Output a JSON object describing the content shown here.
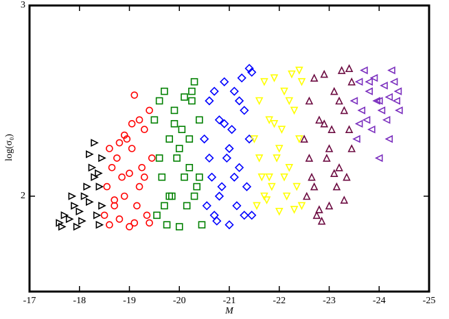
{
  "chart_data": {
    "type": "scatter",
    "x_label": "M",
    "y_label": "log(σ₀)",
    "xlim": [
      -17,
      -25
    ],
    "ylim": [
      1.5,
      3
    ],
    "xticks": [
      -17,
      -18,
      -19,
      -20,
      -21,
      -22,
      -23,
      -24,
      -25
    ],
    "yticks": [
      2,
      3
    ],
    "series": [
      {
        "color": "#000000",
        "marker": "triangle-right",
        "x": [
          -17.6,
          -17.7,
          -17.8,
          -17.9,
          -18.0,
          -18.1,
          -18.2,
          -18.3,
          -18.4,
          -18.45,
          -17.65,
          -17.85,
          -18.05,
          -18.25,
          -18.35,
          -18.4,
          -18.15,
          -17.95,
          -18.3,
          -18.45,
          -18.2,
          -18.38
        ],
        "y": [
          1.86,
          1.9,
          1.88,
          1.95,
          1.92,
          2.0,
          1.97,
          2.1,
          2.05,
          2.2,
          1.84,
          2.0,
          1.87,
          2.15,
          1.9,
          1.85,
          2.05,
          1.84,
          2.28,
          1.95,
          2.22,
          2.12
        ]
      },
      {
        "color": "#ff0000",
        "marker": "circle",
        "x": [
          -18.5,
          -18.55,
          -18.6,
          -18.65,
          -18.7,
          -18.75,
          -18.8,
          -18.85,
          -18.9,
          -18.95,
          -19.0,
          -19.05,
          -19.1,
          -19.15,
          -19.2,
          -19.25,
          -19.3,
          -19.35,
          -19.4,
          -19.45,
          -18.6,
          -18.8,
          -19.0,
          -19.2,
          -19.4,
          -18.7,
          -18.9,
          -19.1,
          -19.3,
          -19.05
        ],
        "y": [
          1.9,
          2.05,
          1.85,
          2.15,
          1.95,
          2.2,
          1.88,
          2.1,
          2.0,
          2.3,
          1.84,
          2.25,
          2.53,
          1.95,
          2.4,
          2.15,
          2.35,
          1.9,
          2.45,
          2.2,
          2.25,
          2.28,
          2.12,
          2.05,
          1.86,
          1.98,
          2.32,
          1.86,
          2.1,
          2.38
        ]
      },
      {
        "color": "#008000",
        "marker": "square",
        "x": [
          -19.5,
          -19.55,
          -19.6,
          -19.65,
          -19.7,
          -19.75,
          -19.8,
          -19.85,
          -19.9,
          -19.95,
          -20.0,
          -20.05,
          -20.1,
          -20.15,
          -20.2,
          -20.25,
          -20.3,
          -20.35,
          -20.4,
          -20.45,
          -19.6,
          -19.8,
          -20.0,
          -20.2,
          -20.4,
          -19.7,
          -19.9,
          -20.1,
          -20.3,
          -20.25
        ],
        "y": [
          2.4,
          1.9,
          2.5,
          2.1,
          2.55,
          1.85,
          2.3,
          2.0,
          2.45,
          2.2,
          1.84,
          2.35,
          2.52,
          1.95,
          2.15,
          2.5,
          2.6,
          2.05,
          2.4,
          1.85,
          2.2,
          2.0,
          2.25,
          2.3,
          2.1,
          1.95,
          2.38,
          2.1,
          2.0,
          2.55
        ]
      },
      {
        "color": "#0000ff",
        "marker": "diamond",
        "x": [
          -20.5,
          -20.55,
          -20.6,
          -20.65,
          -20.7,
          -20.75,
          -20.8,
          -20.85,
          -20.9,
          -20.95,
          -21.0,
          -21.05,
          -21.1,
          -21.15,
          -21.2,
          -21.25,
          -21.3,
          -21.35,
          -21.4,
          -21.45,
          -20.6,
          -20.8,
          -21.0,
          -21.2,
          -21.4,
          -20.7,
          -20.9,
          -21.1,
          -21.3,
          -21.45
        ],
        "y": [
          2.3,
          1.95,
          2.5,
          2.1,
          2.55,
          1.87,
          2.4,
          2.05,
          2.6,
          2.2,
          1.85,
          2.35,
          2.55,
          1.95,
          2.15,
          2.62,
          2.45,
          2.05,
          2.67,
          1.9,
          2.2,
          2.0,
          2.25,
          2.5,
          2.3,
          1.9,
          2.38,
          2.1,
          1.9,
          2.65
        ]
      },
      {
        "color": "#ffff00",
        "marker": "triangle-down",
        "x": [
          -21.5,
          -21.55,
          -21.6,
          -21.65,
          -21.7,
          -21.75,
          -21.8,
          -21.85,
          -21.9,
          -21.95,
          -22.0,
          -22.05,
          -22.1,
          -22.15,
          -22.2,
          -22.25,
          -22.3,
          -22.35,
          -22.4,
          -22.45,
          -21.6,
          -21.8,
          -22.0,
          -22.2,
          -22.4,
          -21.7,
          -21.9,
          -22.1,
          -22.3,
          -22.45
        ],
        "y": [
          2.3,
          1.95,
          2.5,
          2.1,
          2.6,
          1.98,
          2.4,
          2.05,
          2.62,
          2.2,
          1.92,
          2.35,
          2.55,
          2.0,
          2.15,
          2.64,
          2.45,
          2.05,
          2.66,
          1.95,
          2.2,
          2.1,
          2.25,
          2.5,
          2.3,
          2.0,
          2.38,
          2.1,
          1.93,
          2.6
        ]
      },
      {
        "color": "#6b0a40",
        "marker": "triangle-up",
        "x": [
          -22.5,
          -22.55,
          -22.6,
          -22.65,
          -22.7,
          -22.75,
          -22.8,
          -22.85,
          -22.9,
          -22.95,
          -23.0,
          -23.05,
          -23.1,
          -23.15,
          -23.2,
          -23.25,
          -23.3,
          -23.35,
          -23.4,
          -23.45,
          -22.6,
          -22.8,
          -23.0,
          -23.2,
          -23.4,
          -22.7,
          -22.9,
          -23.1,
          -23.3,
          -23.45
        ],
        "y": [
          2.3,
          2.0,
          2.5,
          2.1,
          2.62,
          1.9,
          2.4,
          1.87,
          2.64,
          2.2,
          1.95,
          2.35,
          2.55,
          2.05,
          2.15,
          2.66,
          2.45,
          2.1,
          2.67,
          2.25,
          2.2,
          1.93,
          2.25,
          2.5,
          2.35,
          2.05,
          2.38,
          2.12,
          1.98,
          2.6
        ]
      },
      {
        "color": "#7b2fbe",
        "marker": "triangle-left",
        "x": [
          -23.5,
          -23.55,
          -23.6,
          -23.65,
          -23.7,
          -23.75,
          -23.8,
          -23.85,
          -23.9,
          -23.95,
          -24.0,
          -24.05,
          -24.1,
          -24.15,
          -24.2,
          -24.25,
          -24.3,
          -24.35,
          -24.4,
          -23.6,
          -23.8,
          -24.0,
          -24.2,
          -24.38
        ],
        "y": [
          2.5,
          2.3,
          2.6,
          2.45,
          2.66,
          2.4,
          2.55,
          2.35,
          2.62,
          2.5,
          2.2,
          2.45,
          2.58,
          2.4,
          2.52,
          2.66,
          2.6,
          2.5,
          2.45,
          2.38,
          2.6,
          2.5,
          2.3,
          2.55
        ]
      }
    ]
  }
}
